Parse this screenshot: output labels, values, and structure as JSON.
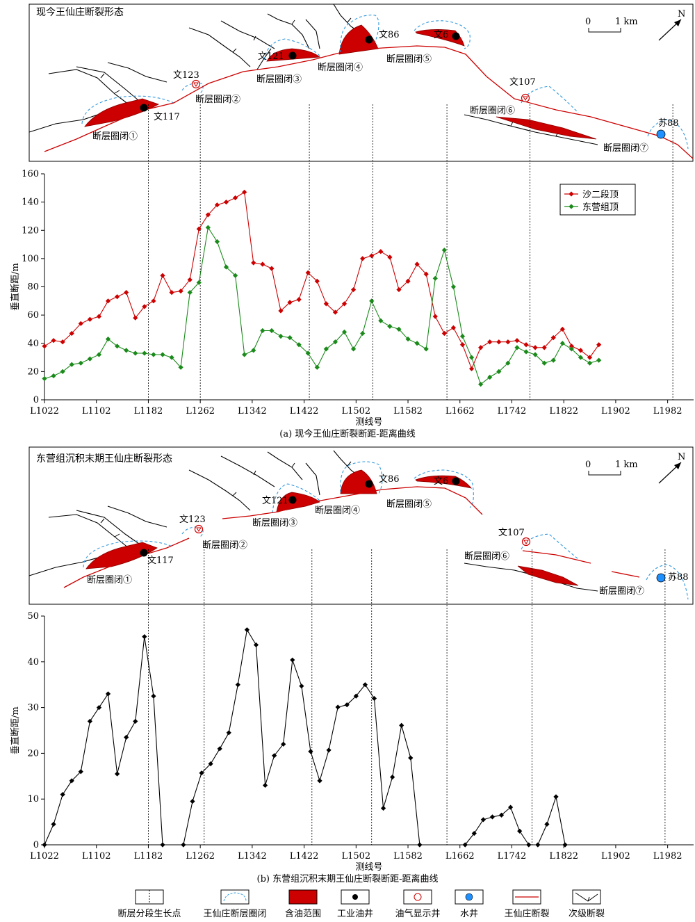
{
  "panel_a": {
    "map_title": "现今王仙庄断裂形态",
    "caption": "(a) 现今王仙庄断裂断距-距离曲线",
    "wells": [
      "文117",
      "文123",
      "文121",
      "文86",
      "文6",
      "文107",
      "苏88"
    ],
    "closures": [
      "断层圈闭①",
      "断层圈闭②",
      "断层圈闭③",
      "断层圈闭④",
      "断层圈闭⑤",
      "断层圈闭⑥",
      "断层圈闭⑦"
    ]
  },
  "panel_b": {
    "map_title": "东营组沉积末期王仙庄断裂形态",
    "caption": "(b) 东营组沉积末期王仙庄断裂断距-距离曲线",
    "wells": [
      "文117",
      "文123",
      "文121",
      "文86",
      "文6",
      "文107",
      "苏88"
    ],
    "closures": [
      "断层圈闭①",
      "断层圈闭②",
      "断层圈闭③",
      "断层圈闭④",
      "断层圈闭⑤",
      "断层圈闭⑥",
      "断层圈闭⑦"
    ]
  },
  "scale": {
    "zero": "0",
    "one": "1 km",
    "north": "N"
  },
  "legend": [
    "断层分段生长点",
    "王仙庄断层圈闭",
    "含油范围",
    "工业油井",
    "油气显示井",
    "水井",
    "王仙庄断裂",
    "次级断裂"
  ],
  "colors": {
    "red_series": "#cc0000",
    "green_series": "#1a8a1a",
    "oil": "#cc0000",
    "water_well": "#1e90ff",
    "closure_outline": "#3399dd"
  },
  "chart_data": [
    {
      "type": "line",
      "title": "",
      "xlabel": "测线号",
      "ylabel": "垂直断距/m",
      "xlim": [
        1022,
        2022
      ],
      "ylim": [
        0,
        160
      ],
      "yticks": [
        0,
        20,
        40,
        60,
        80,
        100,
        120,
        140,
        160
      ],
      "xticks": [
        "L1022",
        "L1102",
        "L1182",
        "L1262",
        "L1342",
        "L1422",
        "L1502",
        "L1582",
        "L1662",
        "L1742",
        "L1822",
        "L1902",
        "L1982"
      ],
      "legend_position": "top-right",
      "growth_points": [
        1182,
        1262,
        1430,
        1528,
        1642,
        1770,
        1990
      ],
      "series": [
        {
          "name": "沙二段顶",
          "color": "#cc0000",
          "points": [
            [
              1022,
              38
            ],
            [
              1036,
              42
            ],
            [
              1050,
              41
            ],
            [
              1064,
              47
            ],
            [
              1078,
              54
            ],
            [
              1092,
              57
            ],
            [
              1106,
              59
            ],
            [
              1120,
              70
            ],
            [
              1134,
              73
            ],
            [
              1148,
              76
            ],
            [
              1162,
              58
            ],
            [
              1176,
              66
            ],
            [
              1190,
              70
            ],
            [
              1204,
              88
            ],
            [
              1218,
              76
            ],
            [
              1232,
              77
            ],
            [
              1246,
              85
            ],
            [
              1260,
              121
            ],
            [
              1274,
              131
            ],
            [
              1288,
              138
            ],
            [
              1302,
              140
            ],
            [
              1316,
              143
            ],
            [
              1330,
              147
            ],
            [
              1344,
              97
            ],
            [
              1358,
              96
            ],
            [
              1372,
              93
            ],
            [
              1386,
              63
            ],
            [
              1400,
              69
            ],
            [
              1414,
              71
            ],
            [
              1428,
              90
            ],
            [
              1442,
              84
            ],
            [
              1456,
              68
            ],
            [
              1470,
              62
            ],
            [
              1484,
              68
            ],
            [
              1498,
              78
            ],
            [
              1512,
              100
            ],
            [
              1526,
              102
            ],
            [
              1540,
              105
            ],
            [
              1554,
              101
            ],
            [
              1568,
              78
            ],
            [
              1582,
              84
            ],
            [
              1596,
              96
            ],
            [
              1610,
              89
            ],
            [
              1624,
              59
            ],
            [
              1638,
              47
            ],
            [
              1652,
              51
            ],
            [
              1666,
              39
            ],
            [
              1680,
              22
            ],
            [
              1694,
              37
            ],
            [
              1708,
              41
            ],
            [
              1722,
              41
            ],
            [
              1736,
              41
            ],
            [
              1750,
              42
            ],
            [
              1764,
              39
            ],
            [
              1778,
              37
            ],
            [
              1792,
              37
            ],
            [
              1806,
              44
            ],
            [
              1820,
              50
            ],
            [
              1834,
              38
            ],
            [
              1848,
              35
            ],
            [
              1862,
              30
            ],
            [
              1876,
              39
            ]
          ]
        },
        {
          "name": "东营组顶",
          "color": "#1a8a1a",
          "points": [
            [
              1022,
              15
            ],
            [
              1036,
              17
            ],
            [
              1050,
              20
            ],
            [
              1064,
              25
            ],
            [
              1078,
              26
            ],
            [
              1092,
              29
            ],
            [
              1106,
              32
            ],
            [
              1120,
              43
            ],
            [
              1134,
              38
            ],
            [
              1148,
              35
            ],
            [
              1162,
              33
            ],
            [
              1176,
              33
            ],
            [
              1190,
              32
            ],
            [
              1204,
              32
            ],
            [
              1218,
              30
            ],
            [
              1232,
              23
            ],
            [
              1246,
              76
            ],
            [
              1260,
              83
            ],
            [
              1274,
              122
            ],
            [
              1288,
              112
            ],
            [
              1302,
              94
            ],
            [
              1316,
              88
            ],
            [
              1330,
              32
            ],
            [
              1344,
              35
            ],
            [
              1358,
              49
            ],
            [
              1372,
              49
            ],
            [
              1386,
              45
            ],
            [
              1400,
              44
            ],
            [
              1414,
              39
            ],
            [
              1428,
              33
            ],
            [
              1442,
              23
            ],
            [
              1456,
              36
            ],
            [
              1470,
              41
            ],
            [
              1484,
              48
            ],
            [
              1498,
              36
            ],
            [
              1512,
              47
            ],
            [
              1526,
              70
            ],
            [
              1540,
              56
            ],
            [
              1554,
              52
            ],
            [
              1568,
              50
            ],
            [
              1582,
              43
            ],
            [
              1596,
              40
            ],
            [
              1610,
              36
            ],
            [
              1624,
              86
            ],
            [
              1638,
              106
            ],
            [
              1652,
              80
            ],
            [
              1666,
              45
            ],
            [
              1680,
              30
            ],
            [
              1694,
              11
            ],
            [
              1708,
              16
            ],
            [
              1722,
              20
            ],
            [
              1736,
              26
            ],
            [
              1750,
              37
            ],
            [
              1764,
              34
            ],
            [
              1778,
              32
            ],
            [
              1792,
              26
            ],
            [
              1806,
              28
            ],
            [
              1820,
              40
            ],
            [
              1834,
              36
            ],
            [
              1848,
              30
            ],
            [
              1862,
              26
            ],
            [
              1876,
              28
            ]
          ]
        }
      ]
    },
    {
      "type": "line",
      "title": "",
      "xlabel": "测线号",
      "ylabel": "垂直断距/m",
      "xlim": [
        1022,
        2022
      ],
      "ylim": [
        0,
        50
      ],
      "yticks": [
        0,
        10,
        20,
        30,
        40,
        50
      ],
      "xticks": [
        "L1022",
        "L1102",
        "L1182",
        "L1262",
        "L1342",
        "L1422",
        "L1502",
        "L1582",
        "L1662",
        "L1742",
        "L1822",
        "L1902",
        "L1982"
      ],
      "growth_points": [
        1182,
        1268,
        1434,
        1526,
        1642,
        1773,
        1978
      ],
      "series": [
        {
          "name": "",
          "color": "#000000",
          "segments": [
            [
              [
                1022,
                0
              ],
              [
                1036,
                4.5
              ],
              [
                1050,
                11
              ],
              [
                1064,
                14
              ],
              [
                1078,
                16
              ],
              [
                1092,
                27
              ],
              [
                1106,
                30
              ],
              [
                1120,
                33
              ],
              [
                1134,
                15.5
              ],
              [
                1148,
                23.5
              ],
              [
                1162,
                27
              ],
              [
                1176,
                45.5
              ],
              [
                1190,
                32.5
              ],
              [
                1204,
                0
              ]
            ],
            [
              [
                1236,
                0
              ],
              [
                1250,
                9.5
              ],
              [
                1264,
                15.7
              ],
              [
                1278,
                17.7
              ],
              [
                1292,
                21
              ],
              [
                1306,
                24.5
              ],
              [
                1320,
                35
              ],
              [
                1334,
                47
              ],
              [
                1348,
                43.7
              ],
              [
                1362,
                13
              ],
              [
                1376,
                19.5
              ],
              [
                1390,
                22
              ],
              [
                1404,
                40.4
              ],
              [
                1418,
                34.7
              ],
              [
                1432,
                20.4
              ],
              [
                1446,
                14
              ],
              [
                1460,
                20.7
              ],
              [
                1474,
                30.1
              ],
              [
                1488,
                30.6
              ],
              [
                1502,
                32.5
              ],
              [
                1516,
                35
              ],
              [
                1530,
                32
              ],
              [
                1544,
                8
              ],
              [
                1558,
                14.8
              ],
              [
                1572,
                26.1
              ],
              [
                1586,
                19
              ],
              [
                1600,
                0
              ]
            ],
            [
              [
                1670,
                0
              ],
              [
                1684,
                2.5
              ],
              [
                1698,
                5.5
              ],
              [
                1712,
                6.1
              ],
              [
                1726,
                6.5
              ],
              [
                1740,
                8.2
              ],
              [
                1754,
                3
              ],
              [
                1768,
                0
              ]
            ],
            [
              [
                1782,
                0
              ],
              [
                1796,
                4.5
              ],
              [
                1810,
                10.5
              ],
              [
                1824,
                0
              ]
            ]
          ]
        }
      ]
    }
  ]
}
